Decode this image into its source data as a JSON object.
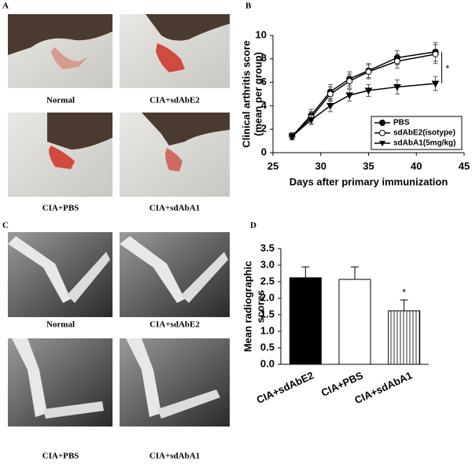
{
  "panel_labels": [
    "A",
    "B",
    "C",
    "D"
  ],
  "photos_a": [
    "Normal",
    "CIA+sdAbE2",
    "CIA+PBS",
    "CIA+sdAbA1"
  ],
  "photos_c": [
    "Normal",
    "CIA+sdAbE2",
    "CIA+PBS",
    "CIA+sdAbA1"
  ],
  "chart_data": [
    {
      "type": "line",
      "ylabel": [
        "Clinical arthritis score",
        "(mean per group)"
      ],
      "xlabel": "Days after primary immunization",
      "x": [
        27,
        29,
        31,
        33,
        35,
        38,
        42
      ],
      "xlim": [
        25,
        45
      ],
      "xticks": [
        25,
        30,
        35,
        40,
        45
      ],
      "ylim": [
        0,
        10
      ],
      "yticks": [
        0,
        2,
        4,
        6,
        8,
        10
      ],
      "legend": "lower right",
      "series": [
        {
          "name": "PBS",
          "color": "#000000",
          "marker": "circle",
          "values": [
            1.4,
            3.2,
            5.2,
            6.3,
            7.0,
            8.1,
            8.6
          ],
          "errors": [
            0.3,
            0.5,
            0.6,
            0.6,
            0.6,
            0.6,
            0.8
          ]
        },
        {
          "name": "sdAbE2(isotype)",
          "color": "#000000",
          "marker": "open-circle",
          "values": [
            1.4,
            3.0,
            5.0,
            6.1,
            6.9,
            7.8,
            8.4
          ],
          "errors": [
            0.3,
            0.5,
            0.6,
            0.6,
            0.6,
            0.6,
            0.8
          ]
        },
        {
          "name": "sdAbA1(5mg/kg)",
          "color": "#000000",
          "marker": "triangle-down",
          "values": [
            1.4,
            2.8,
            4.0,
            4.9,
            5.3,
            5.6,
            5.9
          ],
          "errors": [
            0.3,
            0.4,
            0.5,
            0.5,
            0.5,
            0.6,
            0.6
          ]
        }
      ],
      "annotation": "*"
    },
    {
      "type": "bar",
      "ylabel": [
        "Mean radiographic",
        "scores"
      ],
      "categories": [
        "CIA+sdAbE2",
        "CIA+PBS",
        "CIA+sdAbA1"
      ],
      "values": [
        2.62,
        2.57,
        1.62
      ],
      "errors": [
        0.33,
        0.38,
        0.33
      ],
      "fills": [
        "#000000",
        "#ffffff",
        "#ffffff"
      ],
      "hatched": [
        false,
        false,
        true
      ],
      "ylim": [
        0,
        3.5
      ],
      "yticks": [
        {
          "value": 0,
          "label": "0.0"
        },
        0.5,
        {
          "value": 1,
          "label": "1.0"
        },
        1.5,
        {
          "value": 2,
          "label": "2.0"
        },
        2.5,
        {
          "value": 3,
          "label": "3.0"
        },
        3.5
      ],
      "annotation": "*"
    }
  ]
}
